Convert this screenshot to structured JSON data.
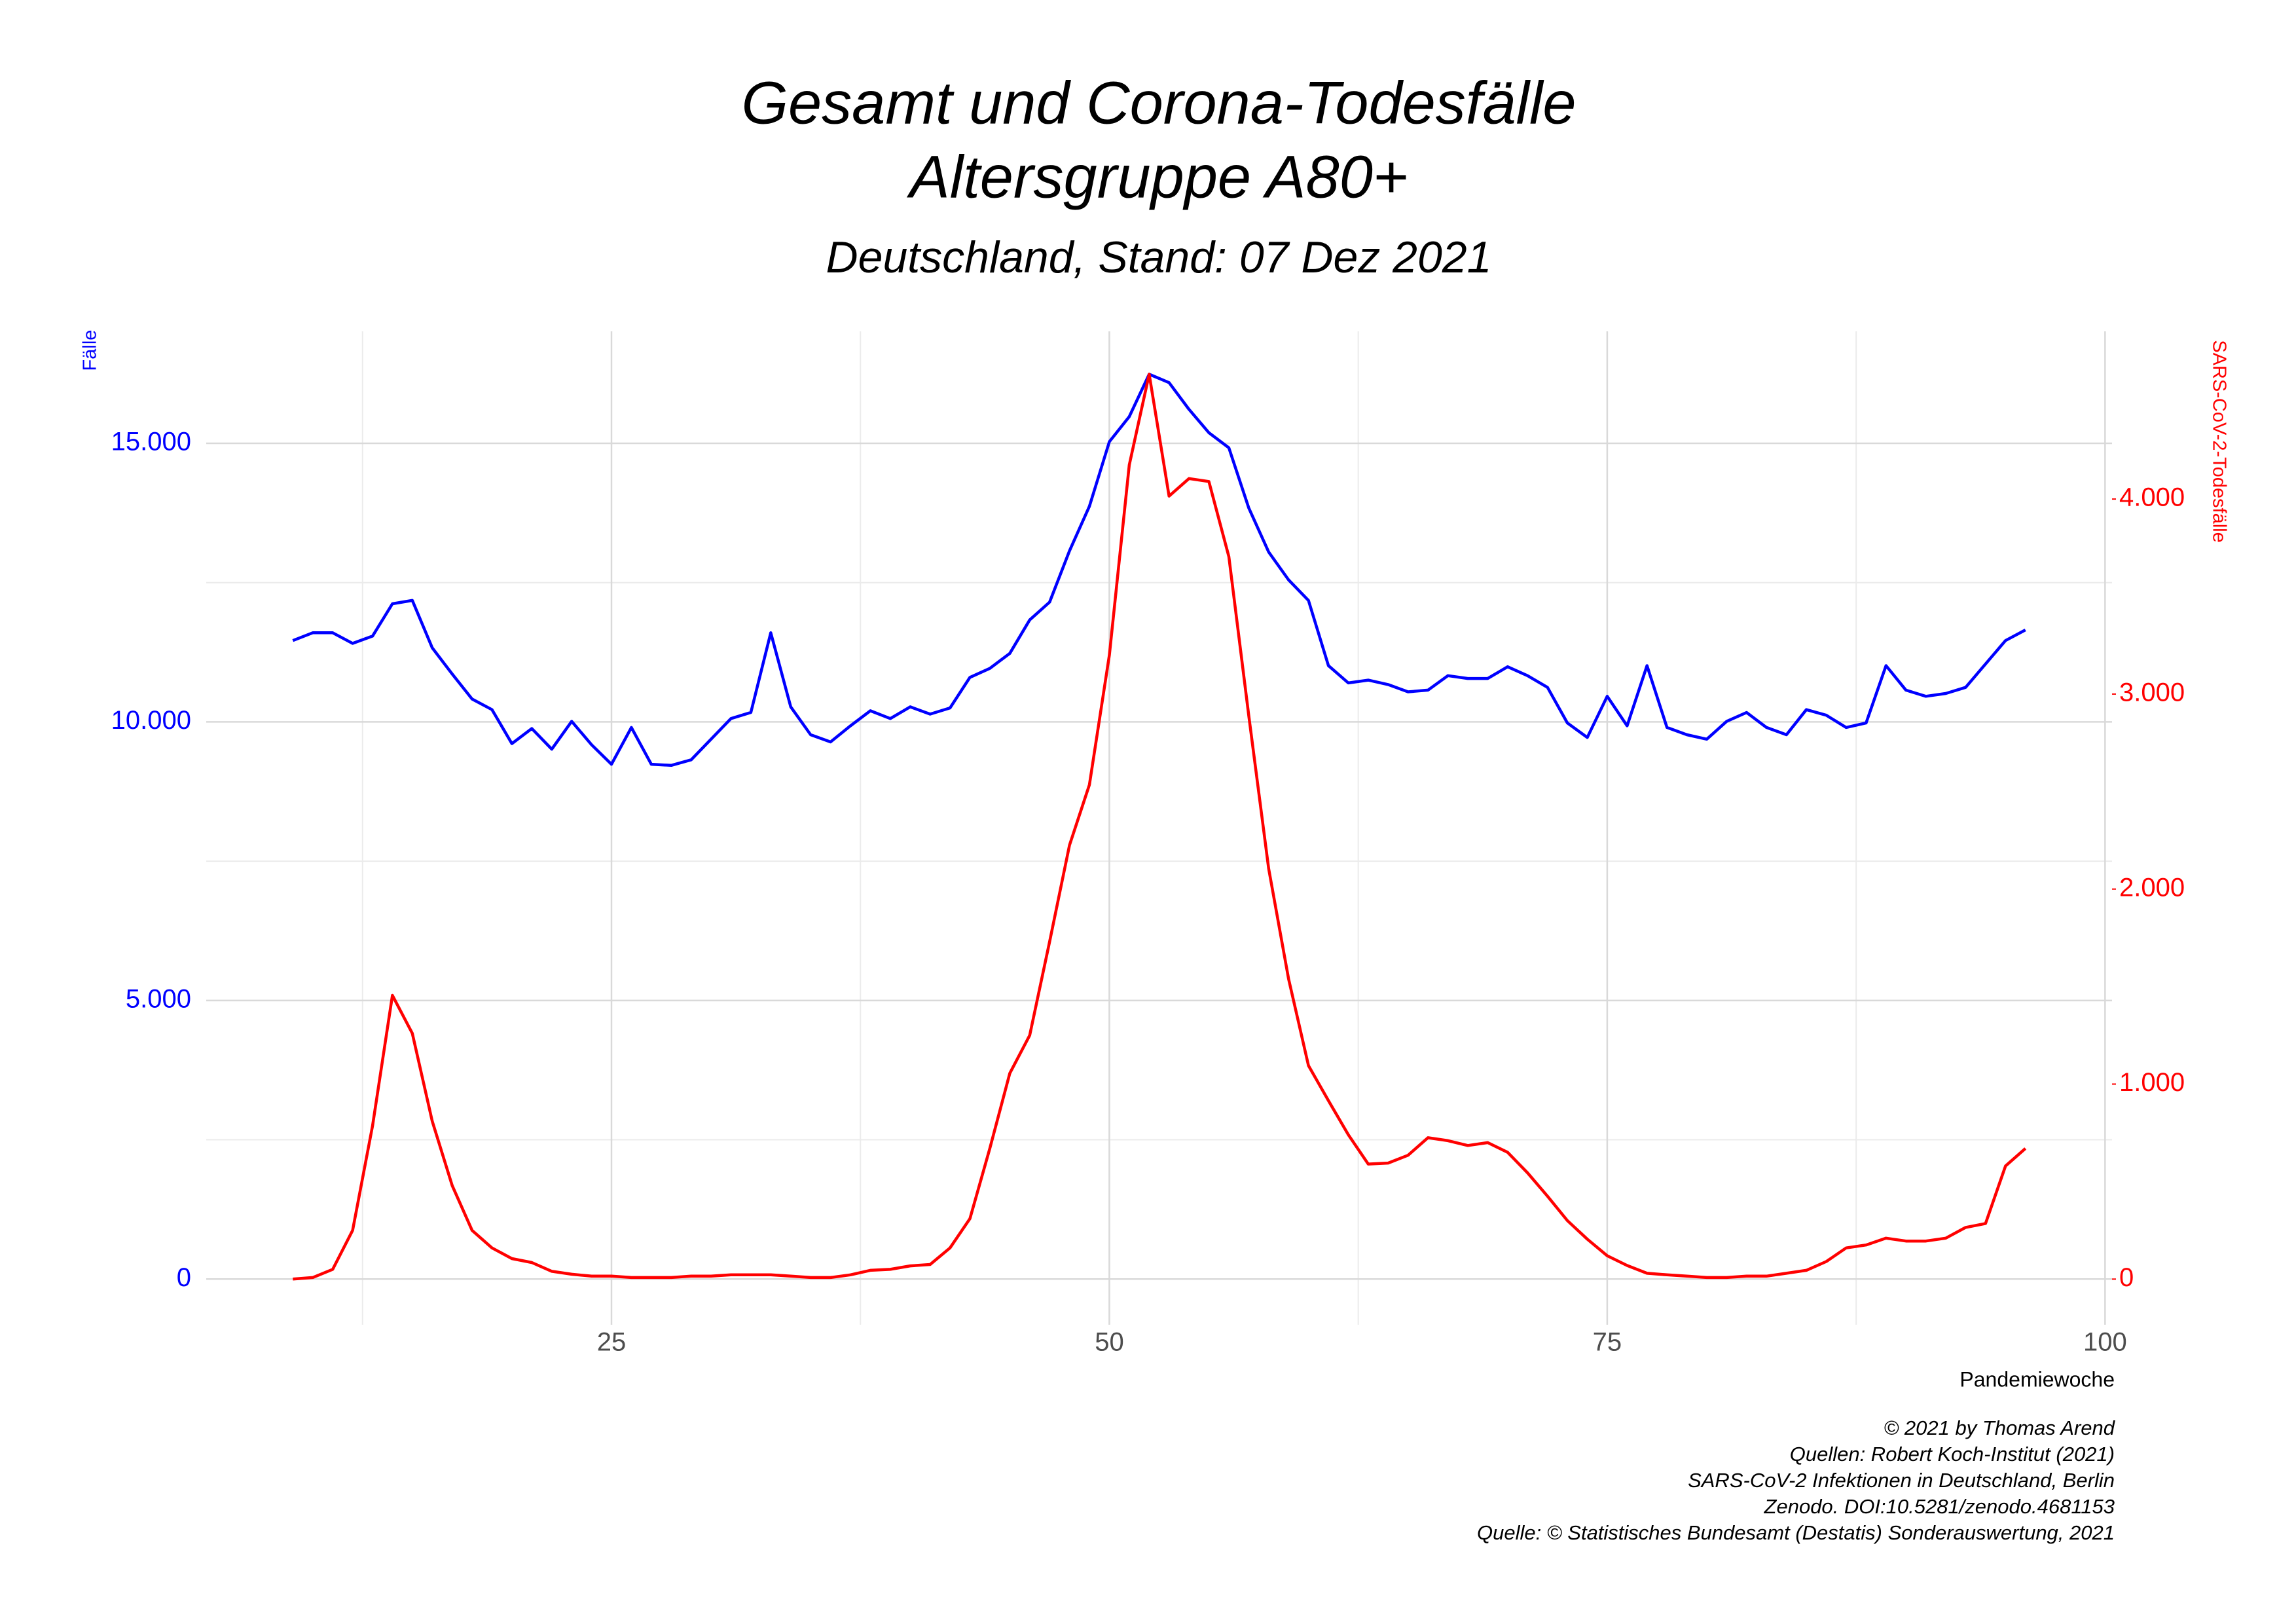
{
  "chart_data": {
    "type": "line",
    "title": "Gesamt und Corona-Todesfälle",
    "subtitle_line": "Altersgruppe A80+",
    "subtitle": "Deutschland, Stand: 07 Dez 2021",
    "xlabel": "Pandemiewoche",
    "ylabel": "Fälle",
    "y2label": "SARS-CoV-2-Todesfälle",
    "caption": [
      "© 2021 by Thomas Arend",
      "Quellen: Robert Koch-Institut (2021)",
      "SARS-CoV-2 Infektionen in Deutschland, Berlin",
      "Zenodo. DOI:10.5281/zenodo.4681153",
      "Quelle: © Statistisches Bundesamt (Destatis) Sonderauswertung, 2021"
    ],
    "x": [
      9,
      10,
      11,
      12,
      13,
      14,
      15,
      16,
      17,
      18,
      19,
      20,
      21,
      22,
      23,
      24,
      25,
      26,
      27,
      28,
      29,
      30,
      31,
      32,
      33,
      34,
      35,
      36,
      37,
      38,
      39,
      40,
      41,
      42,
      43,
      44,
      45,
      46,
      47,
      48,
      49,
      50,
      51,
      52,
      53,
      54,
      55,
      56,
      57,
      58,
      59,
      60,
      61,
      62,
      63,
      64,
      65,
      66,
      67,
      68,
      69,
      70,
      71,
      72,
      73,
      74,
      75,
      76,
      77,
      78,
      79,
      80,
      81,
      82,
      83,
      84,
      85,
      86,
      87,
      88,
      89,
      90,
      91,
      92,
      93,
      94,
      95,
      96
    ],
    "series": [
      {
        "name": "Fälle",
        "color": "#0000ff",
        "axis": "y",
        "values": [
          11460,
          11600,
          11600,
          11410,
          11540,
          12120,
          12180,
          11330,
          10860,
          10410,
          10220,
          9610,
          9880,
          9510,
          10010,
          9590,
          9240,
          9900,
          9240,
          9220,
          9320,
          9690,
          10060,
          10170,
          11600,
          10270,
          9770,
          9640,
          9930,
          10200,
          10060,
          10270,
          10140,
          10250,
          10800,
          10960,
          11230,
          11830,
          12150,
          13070,
          13870,
          15030,
          15480,
          16240,
          16090,
          15610,
          15190,
          14920,
          13840,
          13050,
          12550,
          12180,
          11010,
          10700,
          10750,
          10670,
          10540,
          10570,
          10830,
          10780,
          10780,
          10990,
          10830,
          10620,
          9980,
          9720,
          10460,
          9930,
          11010,
          9900,
          9770,
          9690,
          10010,
          10170,
          9900,
          9770,
          10220,
          10120,
          9900,
          9980,
          11010,
          10570,
          10460,
          10510,
          10620,
          11040,
          11460,
          11650
        ]
      },
      {
        "name": "SARS-CoV-2-Todesfälle",
        "color": "#ff0000",
        "axis": "y2",
        "values": [
          0,
          8,
          50,
          250,
          785,
          1455,
          1260,
          810,
          480,
          250,
          160,
          105,
          85,
          40,
          25,
          15,
          15,
          8,
          8,
          8,
          15,
          15,
          22,
          22,
          22,
          15,
          8,
          8,
          22,
          45,
          50,
          68,
          75,
          160,
          310,
          670,
          1055,
          1250,
          1730,
          2225,
          2535,
          3200,
          4175,
          4640,
          4015,
          4105,
          4090,
          3705,
          2890,
          2105,
          1540,
          1095,
          915,
          740,
          590,
          595,
          635,
          725,
          710,
          685,
          700,
          650,
          545,
          425,
          300,
          205,
          120,
          70,
          30,
          22,
          15,
          8,
          8,
          15,
          15,
          30,
          45,
          90,
          160,
          175,
          210,
          195,
          195,
          210,
          265,
          285,
          580,
          670
        ]
      }
    ],
    "xlim": [
      4.65,
      100.35
    ],
    "xticks": [
      25,
      50,
      75,
      100
    ],
    "xminor": [
      12.5,
      37.5,
      62.5,
      87.5
    ],
    "ylim": [
      -820,
      17010
    ],
    "yticks": [
      0,
      {
        "value": 5000,
        "label": "5.000"
      },
      {
        "value": 10000,
        "label": "10.000"
      },
      {
        "value": 15000,
        "label": "15.000"
      }
    ],
    "yminor": [
      2500,
      7500,
      12500
    ],
    "y2lim": [
      -234,
      4860
    ],
    "y2ticks": [
      0,
      {
        "value": 1000,
        "label": "1.000"
      },
      {
        "value": 2000,
        "label": "2.000"
      },
      {
        "value": 3000,
        "label": "3.000"
      },
      {
        "value": 4000,
        "label": "4.000"
      }
    ],
    "grid": true
  }
}
